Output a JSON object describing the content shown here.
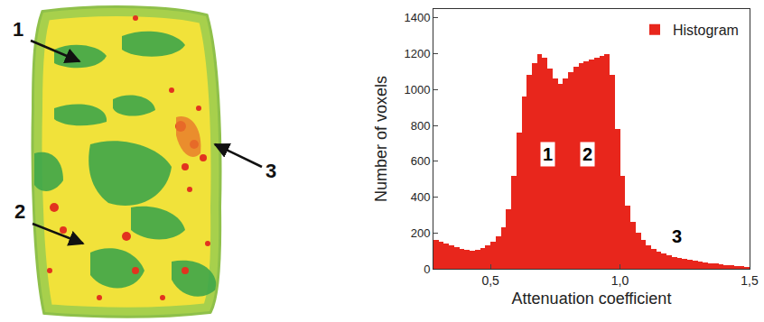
{
  "chart_data": {
    "type": "histogram",
    "x_label": "Attenuation coefficient",
    "y_label": "Number of voxels",
    "series": [
      {
        "name": "Histogram",
        "color": "#e8261c",
        "bins": [
          0.28,
          0.3,
          0.32,
          0.34,
          0.36,
          0.38,
          0.4,
          0.42,
          0.44,
          0.46,
          0.48,
          0.5,
          0.52,
          0.54,
          0.56,
          0.58,
          0.6,
          0.62,
          0.64,
          0.66,
          0.68,
          0.7,
          0.72,
          0.74,
          0.76,
          0.78,
          0.8,
          0.82,
          0.84,
          0.86,
          0.88,
          0.9,
          0.92,
          0.94,
          0.96,
          0.98,
          1.0,
          1.02,
          1.04,
          1.06,
          1.08,
          1.1,
          1.12,
          1.14,
          1.16,
          1.18,
          1.2,
          1.22,
          1.24,
          1.26,
          1.28,
          1.3,
          1.32,
          1.34,
          1.36,
          1.38,
          1.4,
          1.42,
          1.44,
          1.46,
          1.48,
          1.5
        ],
        "values": [
          160,
          150,
          140,
          130,
          120,
          110,
          105,
          100,
          105,
          115,
          130,
          150,
          180,
          230,
          330,
          520,
          760,
          960,
          1080,
          1150,
          1200,
          1180,
          1120,
          1060,
          1030,
          1060,
          1100,
          1130,
          1150,
          1160,
          1170,
          1180,
          1190,
          1200,
          1080,
          780,
          520,
          350,
          260,
          200,
          160,
          130,
          110,
          95,
          85,
          75,
          65,
          60,
          55,
          50,
          45,
          40,
          36,
          32,
          28,
          25,
          22,
          20,
          17,
          15,
          12
        ]
      }
    ],
    "xlim": [
      0.28,
      1.5
    ],
    "xticks": [
      {
        "value": 0.5,
        "label": "0,5"
      },
      {
        "value": 1.0,
        "label": "1,0"
      },
      {
        "value": 1.5,
        "label": "1,5"
      }
    ],
    "ylim": [
      0,
      1450
    ],
    "yticks": [
      0,
      200,
      400,
      600,
      800,
      1000,
      1200,
      1400
    ],
    "grid": false,
    "legend": "top-right",
    "annotations": [
      {
        "text": "1",
        "x": 0.72,
        "y": 640
      },
      {
        "text": "2",
        "x": 0.875,
        "y": 640
      },
      {
        "text": "3",
        "x": 1.22,
        "y": 180
      }
    ]
  },
  "image": {
    "labels": [
      "1",
      "2",
      "3"
    ]
  }
}
